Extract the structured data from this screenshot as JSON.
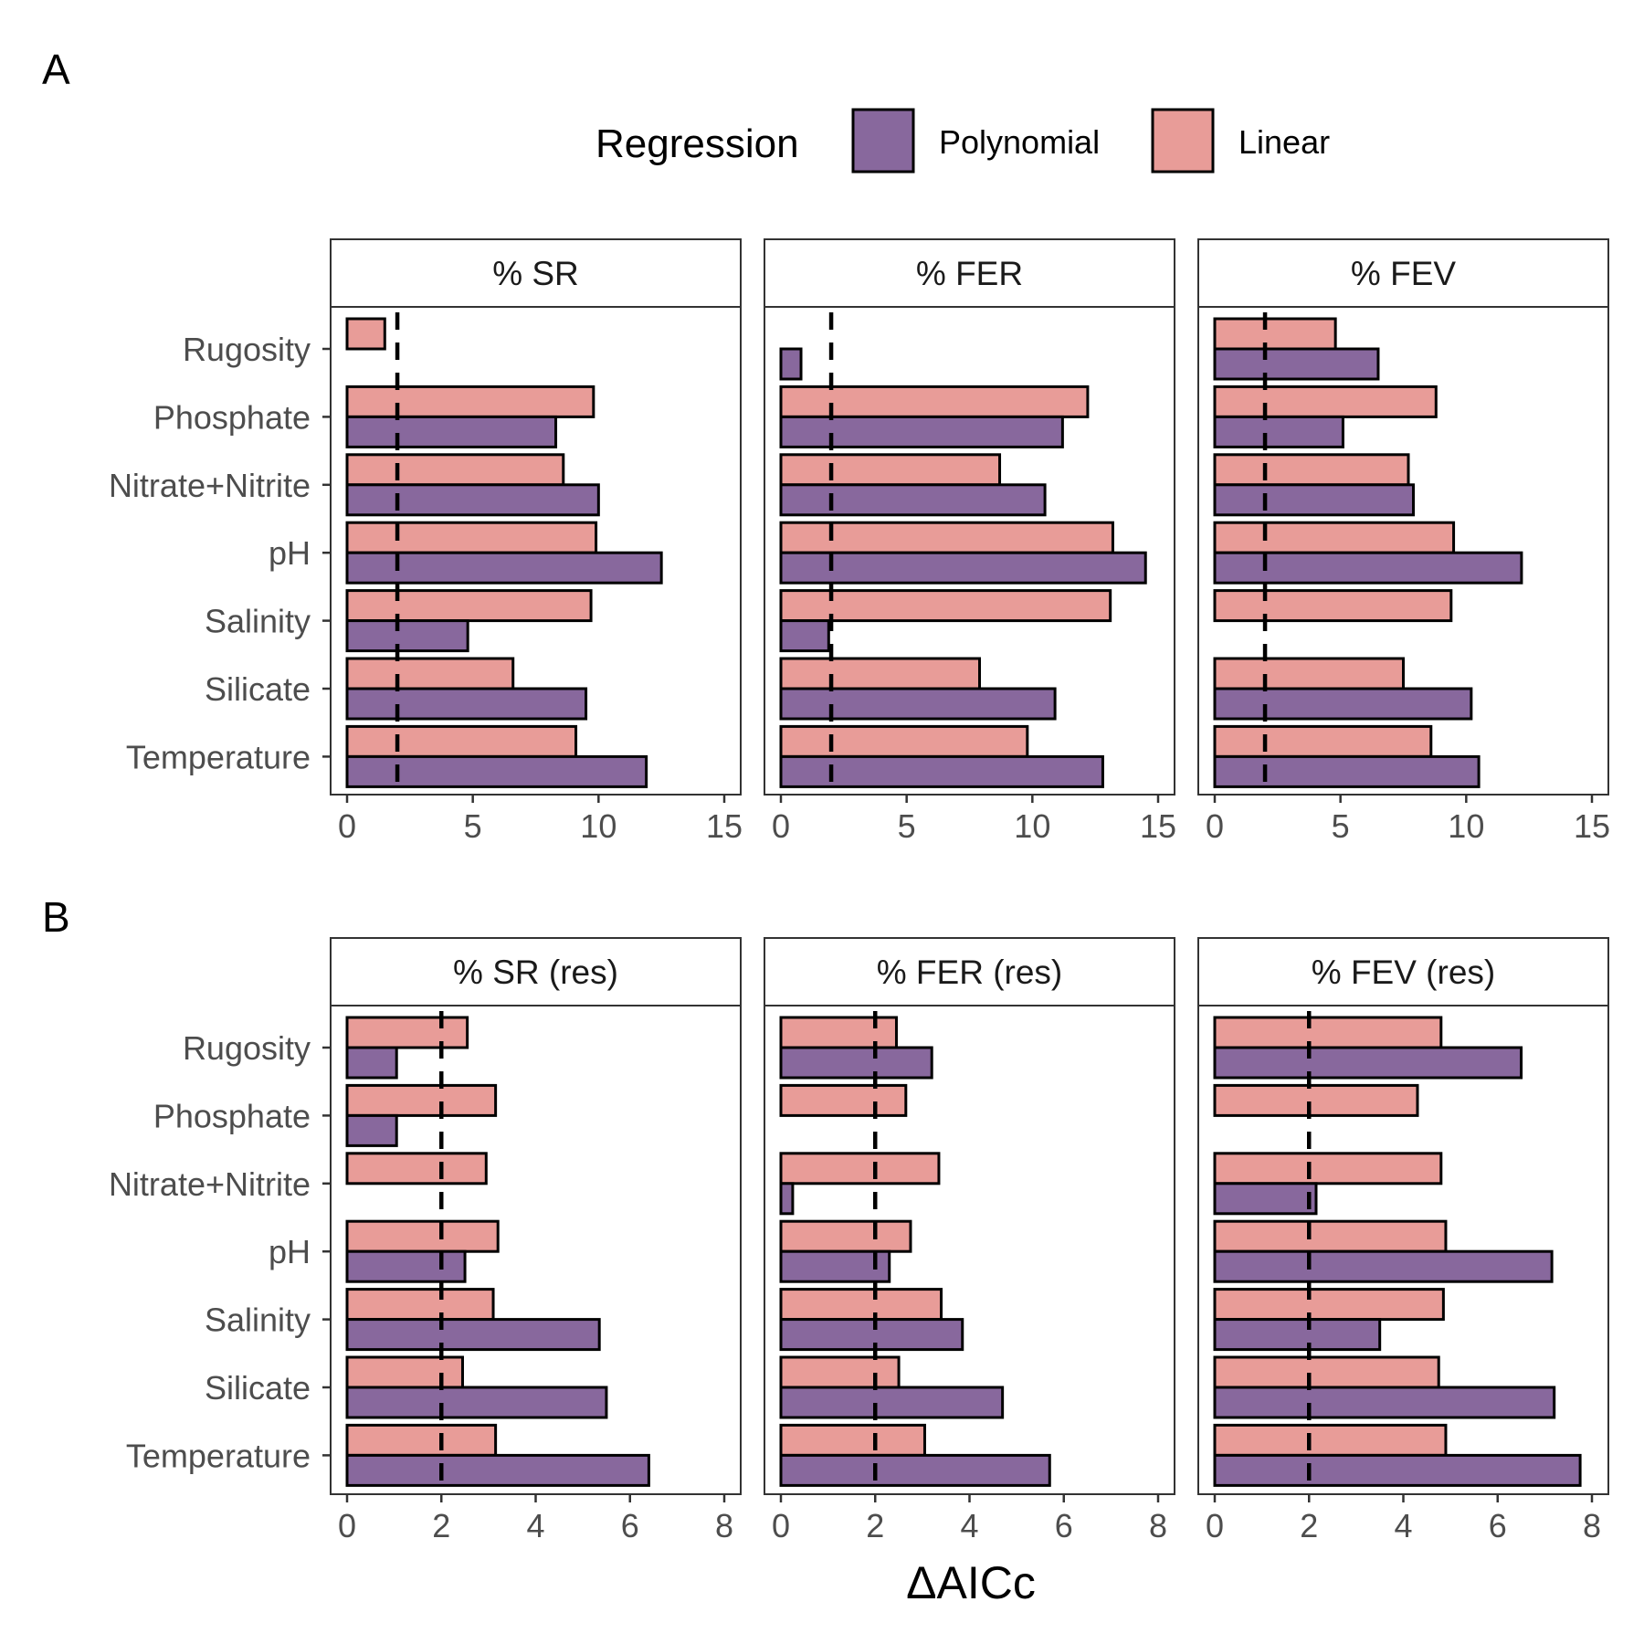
{
  "figure": {
    "colors": {
      "Polynomial": "#88689d",
      "Linear": "#e89c98"
    },
    "legend": {
      "title": "Regression",
      "entries": [
        {
          "key": "Polynomial",
          "label": "Polynomial"
        },
        {
          "key": "Linear",
          "label": "Linear"
        }
      ],
      "placement": "top-center"
    },
    "xlabel": "ΔAICc",
    "reference_line_x": 2
  },
  "chart_data": [
    {
      "type": "bar",
      "orientation": "horizontal",
      "panel_letter": "A",
      "categories": [
        "Rugosity",
        "Phosphate",
        "Nitrate+Nitrite",
        "pH",
        "Salinity",
        "Silicate",
        "Temperature"
      ],
      "xlim": [
        0,
        15
      ],
      "xticks": [
        "0",
        "5",
        "10",
        "15"
      ],
      "xtick_values": [
        0,
        5,
        10,
        15
      ],
      "facets": [
        {
          "title": "% SR",
          "series": [
            {
              "name": "Linear",
              "values": [
                1.5,
                9.8,
                8.6,
                9.9,
                9.7,
                6.6,
                9.1
              ]
            },
            {
              "name": "Polynomial",
              "values": [
                0,
                8.3,
                10.0,
                12.5,
                4.8,
                9.5,
                11.9
              ]
            }
          ]
        },
        {
          "title": "% FER",
          "series": [
            {
              "name": "Linear",
              "values": [
                0,
                12.2,
                8.7,
                13.2,
                13.1,
                7.9,
                9.8
              ]
            },
            {
              "name": "Polynomial",
              "values": [
                0.8,
                11.2,
                10.5,
                14.5,
                1.9,
                10.9,
                12.8
              ]
            }
          ]
        },
        {
          "title": "% FEV",
          "series": [
            {
              "name": "Linear",
              "values": [
                4.8,
                8.8,
                7.7,
                9.5,
                9.4,
                7.5,
                8.6
              ]
            },
            {
              "name": "Polynomial",
              "values": [
                6.5,
                5.1,
                7.9,
                12.2,
                0,
                10.2,
                10.5
              ]
            }
          ]
        }
      ]
    },
    {
      "type": "bar",
      "orientation": "horizontal",
      "panel_letter": "B",
      "categories": [
        "Rugosity",
        "Phosphate",
        "Nitrate+Nitrite",
        "pH",
        "Salinity",
        "Silicate",
        "Temperature"
      ],
      "xlim": [
        0,
        8
      ],
      "xticks": [
        "0",
        "2",
        "4",
        "6",
        "8"
      ],
      "xtick_values": [
        0,
        2,
        4,
        6,
        8
      ],
      "facets": [
        {
          "title": "% SR (res)",
          "series": [
            {
              "name": "Linear",
              "values": [
                2.55,
                3.15,
                2.95,
                3.2,
                3.1,
                2.45,
                3.15
              ]
            },
            {
              "name": "Polynomial",
              "values": [
                1.05,
                1.05,
                0,
                2.5,
                5.35,
                5.5,
                6.4
              ]
            }
          ]
        },
        {
          "title": "% FER (res)",
          "series": [
            {
              "name": "Linear",
              "values": [
                2.45,
                2.65,
                3.35,
                2.75,
                3.4,
                2.5,
                3.05
              ]
            },
            {
              "name": "Polynomial",
              "values": [
                3.2,
                0,
                0.25,
                2.3,
                3.85,
                4.7,
                5.7
              ]
            }
          ]
        },
        {
          "title": "% FEV (res)",
          "series": [
            {
              "name": "Linear",
              "values": [
                4.8,
                4.3,
                4.8,
                4.9,
                4.85,
                4.75,
                4.9
              ]
            },
            {
              "name": "Polynomial",
              "values": [
                6.5,
                0,
                2.15,
                7.15,
                3.5,
                7.2,
                7.75
              ]
            }
          ]
        }
      ]
    }
  ]
}
